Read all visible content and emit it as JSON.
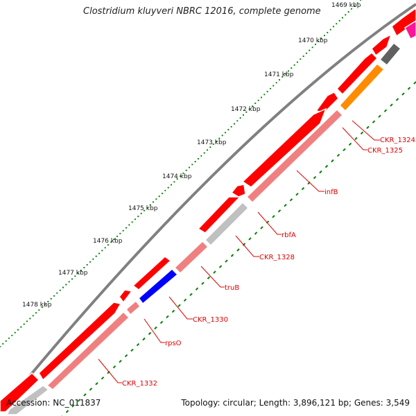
{
  "title": "Clostridium kluyveri NBRC 12016, complete genome",
  "footer": {
    "accession": "Accession: NC_011837",
    "summary": "Topology: circular; Length: 3,896,121 bp; Genes: 3,549"
  },
  "ticks": [
    "1469 kbp",
    "1470 kbp",
    "1471 kbp",
    "1472 kbp",
    "1473 kbp",
    "1474 kbp",
    "1475 kbp",
    "1476 kbp",
    "1477 kbp",
    "1478 kbp"
  ],
  "genes": [
    "CKR_1324",
    "CKR_1325",
    "infB",
    "rbfA",
    "CKR_1328",
    "truB",
    "CKR_1330",
    "rpsO",
    "CKR_1332"
  ],
  "colors": {
    "backbone": "#808080",
    "cds_forward": "#ff0000",
    "cds_reverse": "#f08080",
    "gene_label": "#dd0000",
    "tick": "#008000",
    "orange_feature": "#ff8c00",
    "blue_feature": "#0000ff",
    "grey_feature": "#c0c0c0",
    "dark_feature": "#606060",
    "pink_feature": "#ff1493"
  }
}
